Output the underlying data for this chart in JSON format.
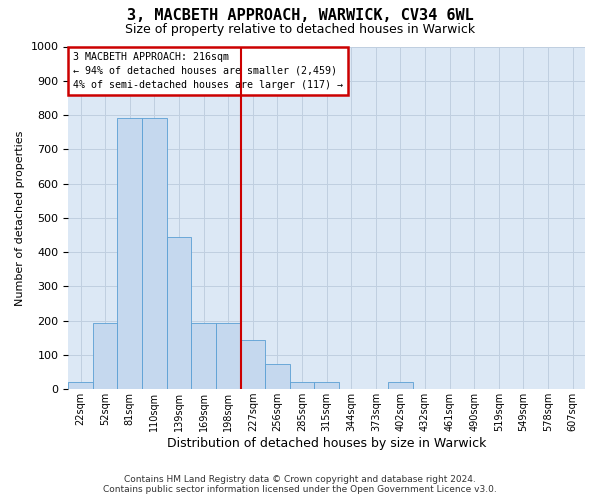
{
  "title": "3, MACBETH APPROACH, WARWICK, CV34 6WL",
  "subtitle": "Size of property relative to detached houses in Warwick",
  "xlabel": "Distribution of detached houses by size in Warwick",
  "ylabel": "Number of detached properties",
  "footnote1": "Contains HM Land Registry data © Crown copyright and database right 2024.",
  "footnote2": "Contains public sector information licensed under the Open Government Licence v3.0.",
  "annotation_title": "3 MACBETH APPROACH: 216sqm",
  "annotation_line1": "← 94% of detached houses are smaller (2,459)",
  "annotation_line2": "4% of semi-detached houses are larger (117) →",
  "bin_labels": [
    "22sqm",
    "52sqm",
    "81sqm",
    "110sqm",
    "139sqm",
    "169sqm",
    "198sqm",
    "227sqm",
    "256sqm",
    "285sqm",
    "315sqm",
    "344sqm",
    "373sqm",
    "402sqm",
    "432sqm",
    "461sqm",
    "490sqm",
    "519sqm",
    "549sqm",
    "578sqm",
    "607sqm"
  ],
  "bar_heights": [
    20,
    193,
    790,
    790,
    443,
    193,
    193,
    143,
    72,
    22,
    22,
    0,
    0,
    22,
    0,
    0,
    0,
    0,
    0,
    0,
    0
  ],
  "bar_color": "#c5d8ee",
  "bar_edgecolor": "#5a9fd4",
  "vline_index": 7,
  "vline_color": "#cc0000",
  "ylim": [
    0,
    1000
  ],
  "yticks": [
    0,
    100,
    200,
    300,
    400,
    500,
    600,
    700,
    800,
    900,
    1000
  ],
  "grid_color": "#c0cfe0",
  "bg_color": "#dce8f5",
  "title_fontsize": 11,
  "subtitle_fontsize": 9,
  "ylabel_fontsize": 8,
  "xlabel_fontsize": 9,
  "annotation_box_color": "white",
  "annotation_box_edgecolor": "#cc0000",
  "footnote_fontsize": 6.5
}
